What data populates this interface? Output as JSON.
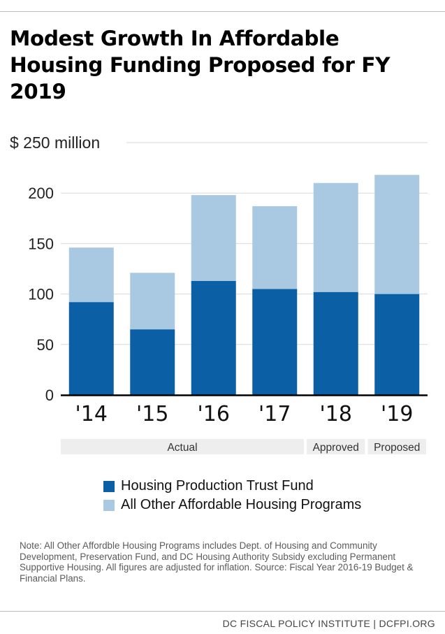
{
  "header": {
    "title": "Modest Growth In Affordable Housing Funding Proposed for FY 2019"
  },
  "chart_data": {
    "type": "bar",
    "stacked": true,
    "categories": [
      "'14",
      "'15",
      "'16",
      "'17",
      "'18",
      "'19"
    ],
    "series": [
      {
        "name": "Housing Production Trust Fund",
        "color": "#0b5fa5",
        "values": [
          92,
          65,
          113,
          105,
          102,
          100
        ]
      },
      {
        "name": "All Other Affordable Housing Programs",
        "color": "#a9c9e3",
        "values": [
          54,
          56,
          85,
          82,
          108,
          118
        ]
      }
    ],
    "ylim": [
      0,
      250
    ],
    "yticks": [
      {
        "value": 0,
        "label": "0"
      },
      {
        "value": 50,
        "label": "50"
      },
      {
        "value": 100,
        "label": "100"
      },
      {
        "value": 150,
        "label": "150"
      },
      {
        "value": 200,
        "label": "200"
      },
      {
        "value": 250,
        "label": "$ 250 million"
      }
    ],
    "grid": true,
    "legend_position": "bottom",
    "groups": [
      {
        "label": "Actual",
        "from": 0,
        "to": 3
      },
      {
        "label": "Approved",
        "from": 4,
        "to": 4
      },
      {
        "label": "Proposed",
        "from": 5,
        "to": 5
      }
    ]
  },
  "note": "Note: All Other Affordble Housing Programs includes Dept. of Housing and Community Development, Preservation Fund, and DC Housing Authority Subsidy excluding Permanent Supportive Housing. All figures are adjusted for inflation. Source: Fiscal Year 2016-19 Budget & Financial Plans.",
  "footer": "DC FISCAL POLICY INSTITUTE | DCFPI.ORG",
  "colors": {
    "grid": "#d9d9d9",
    "axis": "#000000",
    "group_band": "#eeeeee"
  }
}
